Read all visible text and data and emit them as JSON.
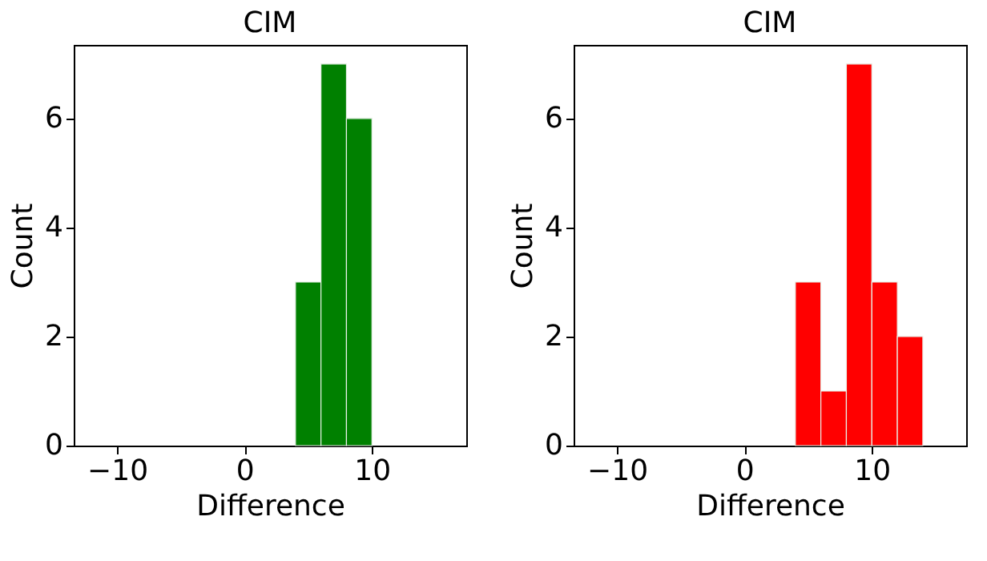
{
  "chart_data": [
    {
      "type": "histogram",
      "title": "CIM",
      "xlabel": "Difference",
      "ylabel": "Count",
      "bins": [
        4,
        6,
        8,
        10
      ],
      "values": [
        3,
        7,
        6
      ],
      "color": "#008000",
      "xlim": [
        -13.4,
        17.4
      ],
      "xticks": [
        -10,
        0,
        10
      ],
      "ylim": [
        0,
        7.35
      ],
      "yticks": [
        0,
        2,
        4,
        6
      ],
      "grid": false
    },
    {
      "type": "histogram",
      "title": "CIM",
      "xlabel": "Difference",
      "ylabel": "Count",
      "bins": [
        4,
        6,
        8,
        10,
        12,
        14
      ],
      "values": [
        3,
        1,
        7,
        3,
        2
      ],
      "color": "#ff0000",
      "xlim": [
        -13.4,
        17.4
      ],
      "xticks": [
        -10,
        0,
        10
      ],
      "ylim": [
        0,
        7.35
      ],
      "yticks": [
        0,
        2,
        4,
        6
      ],
      "grid": false
    }
  ]
}
